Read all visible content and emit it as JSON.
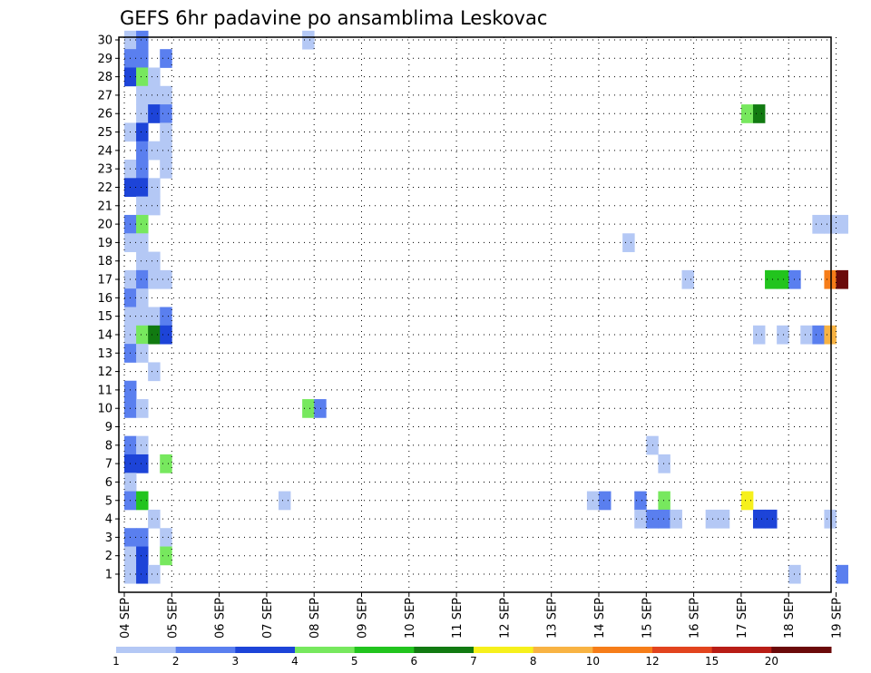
{
  "chart_data": {
    "type": "heatmap",
    "title": "GEFS 6hr padavine po ansamblima Leskovac",
    "xlabel": "",
    "ylabel": "",
    "x_tick_labels": [
      "04 SEP",
      "05 SEP",
      "06 SEP",
      "07 SEP",
      "08 SEP",
      "09 SEP",
      "10 SEP",
      "11 SEP",
      "12 SEP",
      "13 SEP",
      "14 SEP",
      "15 SEP",
      "16 SEP",
      "17 SEP",
      "18 SEP",
      "19 SEP"
    ],
    "y_tick_labels": [
      "1",
      "2",
      "3",
      "4",
      "5",
      "6",
      "7",
      "8",
      "9",
      "10",
      "11",
      "12",
      "13",
      "14",
      "15",
      "16",
      "17",
      "18",
      "19",
      "20",
      "21",
      "22",
      "23",
      "24",
      "25",
      "26",
      "27",
      "28",
      "29",
      "30"
    ],
    "x_range": [
      0,
      61
    ],
    "y_range": [
      0,
      30
    ],
    "grid": true,
    "legend_placement": "bottom",
    "legend_labels": [
      "1",
      "2",
      "3",
      "4",
      "5",
      "6",
      "7",
      "8",
      "10",
      "12",
      "15",
      "20"
    ],
    "legend_colors": [
      "#b4c8f5",
      "#5a7fef",
      "#1d44d8",
      "#77e85e",
      "#22c41e",
      "#117a11",
      "#f6f01c",
      "#f8b343",
      "#f67d19",
      "#e2441e",
      "#b81d16",
      "#6b0a0a"
    ],
    "cell_units": "x = 6-hour step index from 04 SEP 00z, y = ensemble member, v = precipitation class",
    "cells": [
      {
        "x": 0,
        "y": 30,
        "v": 1
      },
      {
        "x": 1,
        "y": 30,
        "v": 2
      },
      {
        "x": 15,
        "y": 30,
        "v": 1
      },
      {
        "x": 0,
        "y": 29,
        "v": 2
      },
      {
        "x": 1,
        "y": 29,
        "v": 2
      },
      {
        "x": 3,
        "y": 29,
        "v": 2
      },
      {
        "x": 0,
        "y": 28,
        "v": 3
      },
      {
        "x": 1,
        "y": 28,
        "v": 4
      },
      {
        "x": 2,
        "y": 28,
        "v": 1
      },
      {
        "x": 1,
        "y": 27,
        "v": 1
      },
      {
        "x": 2,
        "y": 27,
        "v": 1
      },
      {
        "x": 3,
        "y": 27,
        "v": 1
      },
      {
        "x": 1,
        "y": 26,
        "v": 1
      },
      {
        "x": 2,
        "y": 26,
        "v": 3
      },
      {
        "x": 3,
        "y": 26,
        "v": 2
      },
      {
        "x": 52,
        "y": 26,
        "v": 4
      },
      {
        "x": 53,
        "y": 26,
        "v": 6
      },
      {
        "x": 0,
        "y": 25,
        "v": 1
      },
      {
        "x": 1,
        "y": 25,
        "v": 3
      },
      {
        "x": 3,
        "y": 25,
        "v": 1
      },
      {
        "x": 1,
        "y": 24,
        "v": 2
      },
      {
        "x": 2,
        "y": 24,
        "v": 1
      },
      {
        "x": 3,
        "y": 24,
        "v": 1
      },
      {
        "x": 0,
        "y": 23,
        "v": 1
      },
      {
        "x": 1,
        "y": 23,
        "v": 2
      },
      {
        "x": 3,
        "y": 23,
        "v": 1
      },
      {
        "x": 0,
        "y": 22,
        "v": 3
      },
      {
        "x": 1,
        "y": 22,
        "v": 3
      },
      {
        "x": 2,
        "y": 22,
        "v": 1
      },
      {
        "x": 1,
        "y": 21,
        "v": 1
      },
      {
        "x": 2,
        "y": 21,
        "v": 1
      },
      {
        "x": 0,
        "y": 20,
        "v": 2
      },
      {
        "x": 1,
        "y": 20,
        "v": 4
      },
      {
        "x": 58,
        "y": 20,
        "v": 1
      },
      {
        "x": 59,
        "y": 20,
        "v": 1
      },
      {
        "x": 60,
        "y": 20,
        "v": 1
      },
      {
        "x": 0,
        "y": 19,
        "v": 1
      },
      {
        "x": 1,
        "y": 19,
        "v": 1
      },
      {
        "x": 42,
        "y": 19,
        "v": 1
      },
      {
        "x": 1,
        "y": 18,
        "v": 1
      },
      {
        "x": 2,
        "y": 18,
        "v": 1
      },
      {
        "x": 0,
        "y": 17,
        "v": 1
      },
      {
        "x": 1,
        "y": 17,
        "v": 2
      },
      {
        "x": 2,
        "y": 17,
        "v": 1
      },
      {
        "x": 3,
        "y": 17,
        "v": 1
      },
      {
        "x": 47,
        "y": 17,
        "v": 1
      },
      {
        "x": 54,
        "y": 17,
        "v": 5
      },
      {
        "x": 55,
        "y": 17,
        "v": 5
      },
      {
        "x": 56,
        "y": 17,
        "v": 2
      },
      {
        "x": 59,
        "y": 17,
        "v": 9
      },
      {
        "x": 60,
        "y": 17,
        "v": 12
      },
      {
        "x": 0,
        "y": 16,
        "v": 2
      },
      {
        "x": 1,
        "y": 16,
        "v": 1
      },
      {
        "x": 0,
        "y": 15,
        "v": 1
      },
      {
        "x": 1,
        "y": 15,
        "v": 1
      },
      {
        "x": 2,
        "y": 15,
        "v": 1
      },
      {
        "x": 3,
        "y": 15,
        "v": 2
      },
      {
        "x": 0,
        "y": 14,
        "v": 1
      },
      {
        "x": 1,
        "y": 14,
        "v": 4
      },
      {
        "x": 2,
        "y": 14,
        "v": 6
      },
      {
        "x": 3,
        "y": 14,
        "v": 3
      },
      {
        "x": 53,
        "y": 14,
        "v": 1
      },
      {
        "x": 55,
        "y": 14,
        "v": 1
      },
      {
        "x": 57,
        "y": 14,
        "v": 1
      },
      {
        "x": 58,
        "y": 14,
        "v": 2
      },
      {
        "x": 59,
        "y": 14,
        "v": 8
      },
      {
        "x": 0,
        "y": 13,
        "v": 2
      },
      {
        "x": 1,
        "y": 13,
        "v": 1
      },
      {
        "x": 2,
        "y": 12,
        "v": 1
      },
      {
        "x": 0,
        "y": 11,
        "v": 2
      },
      {
        "x": 0,
        "y": 10,
        "v": 2
      },
      {
        "x": 1,
        "y": 10,
        "v": 1
      },
      {
        "x": 15,
        "y": 10,
        "v": 4
      },
      {
        "x": 16,
        "y": 10,
        "v": 2
      },
      {
        "x": 0,
        "y": 8,
        "v": 2
      },
      {
        "x": 1,
        "y": 8,
        "v": 1
      },
      {
        "x": 44,
        "y": 8,
        "v": 1
      },
      {
        "x": 0,
        "y": 7,
        "v": 3
      },
      {
        "x": 1,
        "y": 7,
        "v": 3
      },
      {
        "x": 3,
        "y": 7,
        "v": 4
      },
      {
        "x": 45,
        "y": 7,
        "v": 1
      },
      {
        "x": 0,
        "y": 6,
        "v": 1
      },
      {
        "x": 0,
        "y": 5,
        "v": 2
      },
      {
        "x": 1,
        "y": 5,
        "v": 5
      },
      {
        "x": 13,
        "y": 5,
        "v": 1
      },
      {
        "x": 39,
        "y": 5,
        "v": 1
      },
      {
        "x": 40,
        "y": 5,
        "v": 2
      },
      {
        "x": 43,
        "y": 5,
        "v": 2
      },
      {
        "x": 45,
        "y": 5,
        "v": 4
      },
      {
        "x": 52,
        "y": 5,
        "v": 7
      },
      {
        "x": 2,
        "y": 4,
        "v": 1
      },
      {
        "x": 43,
        "y": 4,
        "v": 1
      },
      {
        "x": 44,
        "y": 4,
        "v": 2
      },
      {
        "x": 45,
        "y": 4,
        "v": 2
      },
      {
        "x": 46,
        "y": 4,
        "v": 1
      },
      {
        "x": 49,
        "y": 4,
        "v": 1
      },
      {
        "x": 50,
        "y": 4,
        "v": 1
      },
      {
        "x": 53,
        "y": 4,
        "v": 3
      },
      {
        "x": 54,
        "y": 4,
        "v": 3
      },
      {
        "x": 59,
        "y": 4,
        "v": 1
      },
      {
        "x": 0,
        "y": 3,
        "v": 2
      },
      {
        "x": 1,
        "y": 3,
        "v": 2
      },
      {
        "x": 3,
        "y": 3,
        "v": 1
      },
      {
        "x": 0,
        "y": 2,
        "v": 1
      },
      {
        "x": 1,
        "y": 2,
        "v": 3
      },
      {
        "x": 3,
        "y": 2,
        "v": 4
      },
      {
        "x": 0,
        "y": 1,
        "v": 1
      },
      {
        "x": 1,
        "y": 1,
        "v": 3
      },
      {
        "x": 2,
        "y": 1,
        "v": 1
      },
      {
        "x": 56,
        "y": 1,
        "v": 1
      },
      {
        "x": 60,
        "y": 1,
        "v": 2
      }
    ]
  }
}
